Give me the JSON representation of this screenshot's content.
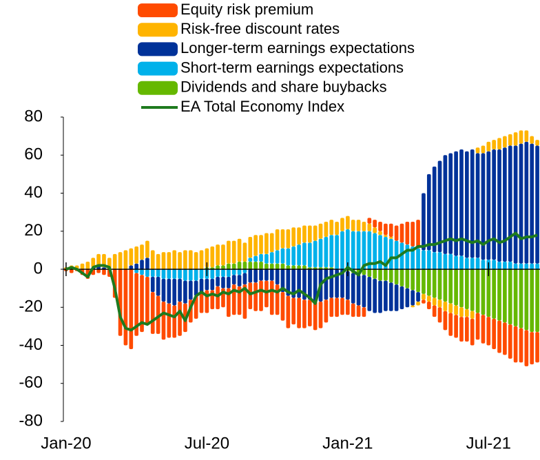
{
  "chart_data": {
    "type": "bar",
    "stacked": true,
    "categories": [
      "Jan-20",
      null,
      null,
      null,
      null,
      null,
      null,
      null,
      null,
      null,
      null,
      null,
      null,
      null,
      null,
      null,
      null,
      null,
      null,
      null,
      null,
      null,
      null,
      null,
      null,
      null,
      "Jul-20",
      null,
      null,
      null,
      null,
      null,
      null,
      null,
      null,
      null,
      null,
      null,
      null,
      null,
      null,
      null,
      null,
      null,
      null,
      null,
      null,
      null,
      null,
      null,
      null,
      null,
      "Jan-21",
      null,
      null,
      null,
      null,
      null,
      null,
      null,
      null,
      null,
      null,
      null,
      null,
      null,
      null,
      null,
      null,
      null,
      null,
      null,
      null,
      null,
      null,
      null,
      null,
      null,
      "Jul-21",
      null,
      null,
      null,
      null,
      null,
      null,
      null,
      null,
      null
    ],
    "ylim": [
      -80,
      80
    ],
    "yticks": [
      -80,
      -60,
      -40,
      -20,
      0,
      20,
      40,
      60,
      80
    ],
    "grid": false,
    "series": [
      {
        "name": "Equity risk premium",
        "color": "#ff4b00",
        "values": [
          -1,
          -2,
          -1,
          -3,
          -5,
          -3,
          -2,
          -3,
          -4,
          -15,
          -35,
          -40,
          -42,
          -33,
          -30,
          -25,
          -22,
          -20,
          -20,
          -18,
          -17,
          -18,
          -15,
          -12,
          -12,
          -10,
          -12,
          -10,
          -12,
          -10,
          -15,
          -16,
          -15,
          -18,
          -14,
          -15,
          -16,
          -14,
          -18,
          -16,
          -15,
          -17,
          -14,
          -16,
          -15,
          -14,
          -15,
          -14,
          -12,
          -10,
          -10,
          -9,
          -8,
          -7,
          -6,
          -5,
          3,
          4,
          5,
          6,
          7,
          8,
          10,
          12,
          13,
          15,
          -2,
          -4,
          -6,
          -8,
          -10,
          -12,
          -12,
          -13,
          -13,
          -14,
          -14,
          -15,
          -15,
          -16,
          -17,
          -17,
          -18,
          -19,
          -18,
          -19,
          -17,
          -16
        ]
      },
      {
        "name": "Risk-free discount rates",
        "color": "#ffb400",
        "values": [
          1,
          2,
          2,
          3,
          4,
          5,
          6,
          7,
          6,
          8,
          9,
          10,
          9,
          9,
          8,
          9,
          10,
          8,
          9,
          9,
          10,
          9,
          10,
          10,
          9,
          10,
          10,
          11,
          11,
          11,
          12,
          12,
          12,
          10,
          11,
          11,
          10,
          11,
          10,
          11,
          10,
          10,
          10,
          9,
          9,
          9,
          8,
          8,
          8,
          8,
          7,
          7,
          7,
          6,
          6,
          5,
          4,
          3,
          2,
          1,
          1,
          0,
          0,
          0,
          -1,
          -2,
          -3,
          -3,
          -4,
          -4,
          -5,
          -5,
          -5,
          -5,
          -4,
          -4,
          3,
          4,
          5,
          5,
          6,
          6,
          6,
          7,
          7,
          6,
          4,
          3
        ]
      },
      {
        "name": "Longer-term earnings expectations",
        "color": "#003299",
        "values": [
          0,
          0,
          0,
          0,
          0,
          1,
          2,
          1,
          0,
          0,
          0,
          0,
          2,
          3,
          5,
          6,
          -8,
          -10,
          -12,
          -13,
          -14,
          -12,
          -12,
          -10,
          -8,
          -8,
          -6,
          -6,
          -5,
          -6,
          -6,
          -5,
          -6,
          -6,
          -7,
          -7,
          -6,
          -6,
          -6,
          -8,
          -12,
          -14,
          -15,
          -15,
          -16,
          -16,
          -17,
          -17,
          -16,
          -15,
          -15,
          -15,
          -15,
          -16,
          -16,
          -17,
          -18,
          -18,
          -17,
          -16,
          -15,
          -14,
          -12,
          -10,
          -8,
          -5,
          30,
          40,
          45,
          48,
          52,
          53,
          55,
          56,
          56,
          57,
          55,
          56,
          57,
          58,
          59,
          60,
          61,
          62,
          63,
          64,
          63,
          62
        ]
      },
      {
        "name": "Short-term earnings expectations",
        "color": "#00b1ea",
        "values": [
          0,
          0,
          0,
          0,
          0,
          0,
          0,
          0,
          0,
          0,
          0,
          0,
          0,
          -2,
          -3,
          -4,
          -4,
          -4,
          -5,
          -5,
          -5,
          -5,
          -6,
          -6,
          -6,
          -5,
          -5,
          -5,
          -4,
          -4,
          -4,
          -3,
          -3,
          -2,
          2,
          3,
          4,
          5,
          6,
          7,
          8,
          9,
          10,
          11,
          12,
          13,
          14,
          15,
          16,
          17,
          18,
          20,
          21,
          20,
          20,
          20,
          20,
          19,
          18,
          17,
          16,
          15,
          14,
          13,
          12,
          11,
          10,
          10,
          9,
          9,
          8,
          8,
          7,
          7,
          6,
          6,
          6,
          5,
          5,
          5,
          4,
          4,
          4,
          3,
          3,
          3,
          3,
          3
        ]
      },
      {
        "name": "Dividends and share buybacks",
        "color": "#65b800",
        "values": [
          0,
          0,
          0,
          0,
          0,
          0,
          0,
          0,
          0,
          0,
          0,
          0,
          0,
          0,
          0,
          0,
          0,
          0,
          0,
          0,
          0,
          0,
          0,
          0,
          0,
          0,
          1,
          1,
          2,
          2,
          3,
          3,
          4,
          4,
          4,
          4,
          4,
          3,
          3,
          3,
          3,
          2,
          2,
          2,
          2,
          1,
          1,
          1,
          1,
          1,
          0,
          0,
          -1,
          -2,
          -3,
          -3,
          -4,
          -5,
          -6,
          -6,
          -7,
          -8,
          -9,
          -10,
          -11,
          -12,
          -13,
          -14,
          -15,
          -16,
          -17,
          -18,
          -19,
          -20,
          -21,
          -22,
          -23,
          -24,
          -25,
          -26,
          -27,
          -28,
          -29,
          -30,
          -31,
          -32,
          -33,
          -33
        ]
      },
      {
        "name": "EA Total Economy Index",
        "color": "#1e7a1e",
        "type": "line",
        "values": [
          0,
          1,
          0,
          -2,
          -4,
          1,
          2,
          2,
          1,
          -10,
          -25,
          -31,
          -32,
          -30,
          -28,
          -29,
          -27,
          -25,
          -23,
          -24,
          -25,
          -22,
          -27,
          -20,
          -14,
          -12,
          -14,
          -13,
          -14,
          -12,
          -13,
          -11,
          -12,
          -10,
          -13,
          -12,
          -11,
          -12,
          -11,
          -12,
          -10,
          -12,
          -13,
          -11,
          -13,
          -15,
          -18,
          -8,
          -5,
          -4,
          -3,
          -2,
          1,
          -1,
          -3,
          2,
          3,
          3,
          4,
          2,
          6,
          6,
          8,
          10,
          10,
          12,
          12,
          13,
          13,
          14,
          15,
          16,
          15,
          16,
          15,
          14,
          15,
          13,
          15,
          16,
          14,
          15,
          17,
          19,
          16,
          17,
          17,
          18
        ]
      }
    ]
  }
}
